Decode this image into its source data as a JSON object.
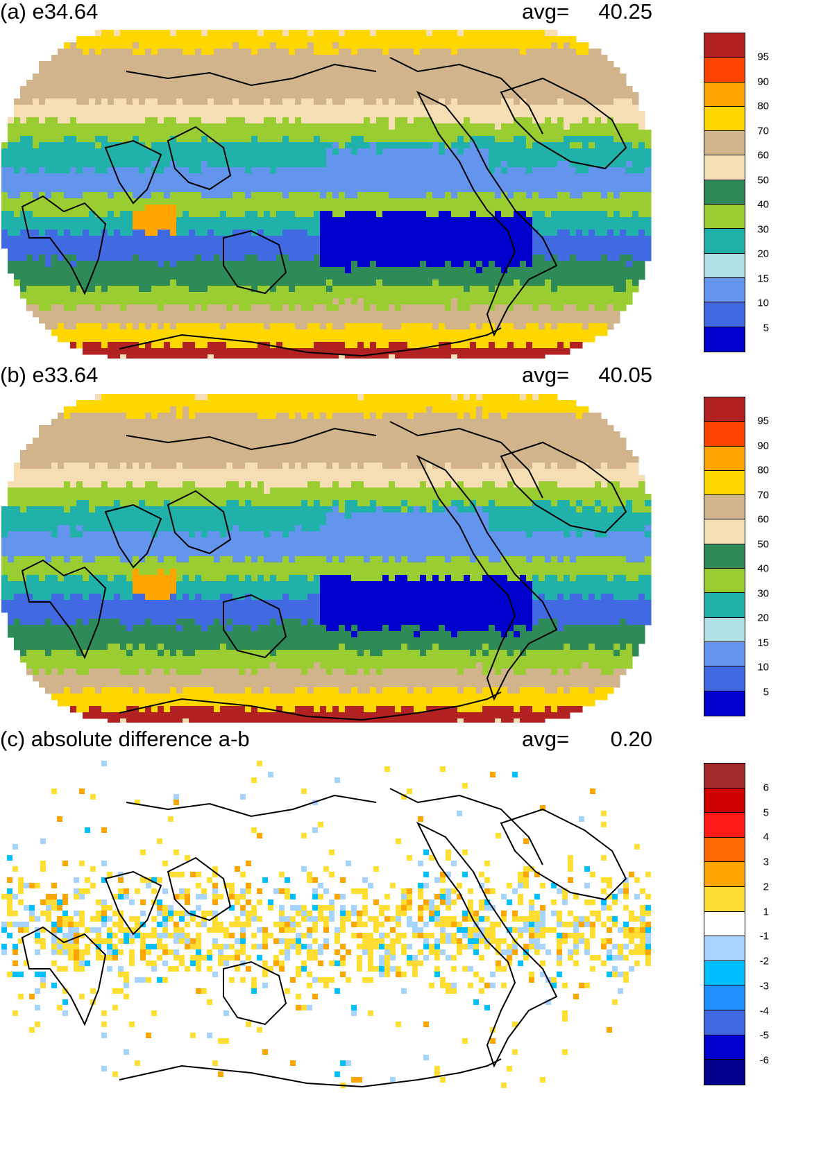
{
  "panels": [
    {
      "title": "(a) e34.64",
      "avg_label": "avg=",
      "avg_value": "40.25",
      "colorbar": {
        "labels": [
          "95",
          "90",
          "80",
          "70",
          "60",
          "50",
          "40",
          "30",
          "20",
          "15",
          "10",
          "5"
        ],
        "colors": [
          "#b22222",
          "#ff4500",
          "#ffa500",
          "#ffd700",
          "#d2b48c",
          "#f5deb3",
          "#2e8b57",
          "#9acd32",
          "#20b2aa",
          "#b0e0e6",
          "#6495ed",
          "#4169e1",
          "#0000cd"
        ]
      }
    },
    {
      "title": "(b) e33.64",
      "avg_label": "avg=",
      "avg_value": "40.05",
      "colorbar": {
        "labels": [
          "95",
          "90",
          "80",
          "70",
          "60",
          "50",
          "40",
          "30",
          "20",
          "15",
          "10",
          "5"
        ],
        "colors": [
          "#b22222",
          "#ff4500",
          "#ffa500",
          "#ffd700",
          "#d2b48c",
          "#f5deb3",
          "#2e8b57",
          "#9acd32",
          "#20b2aa",
          "#b0e0e6",
          "#6495ed",
          "#4169e1",
          "#0000cd"
        ]
      }
    },
    {
      "title": "(c) absolute difference a-b",
      "avg_label": "avg=",
      "avg_value": "0.20",
      "colorbar": {
        "labels": [
          "6",
          "5",
          "4",
          "3",
          "2",
          "1",
          "-1",
          "-2",
          "-3",
          "-4",
          "-5",
          "-6"
        ],
        "colors": [
          "#a52a2a",
          "#cc0000",
          "#ff1a1a",
          "#ff6a00",
          "#ffa500",
          "#ffdd33",
          "#ffffff",
          "#a6d4ff",
          "#00bfff",
          "#1e90ff",
          "#4169e1",
          "#0000cd",
          "#00008b"
        ]
      }
    }
  ]
}
